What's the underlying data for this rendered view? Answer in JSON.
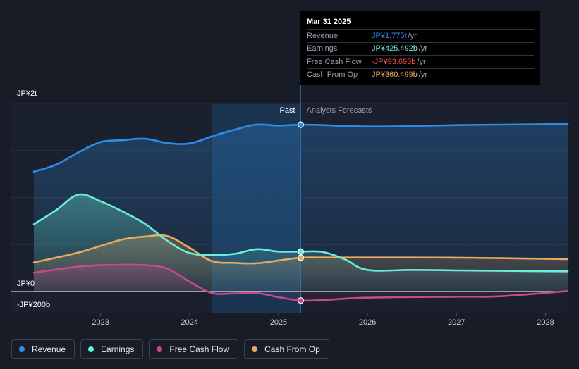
{
  "colors": {
    "revenue": "#2e8ee5",
    "earnings": "#6cedd7",
    "free_cash_flow": "#c64b8c",
    "cash_from_op": "#e8aa61",
    "background": "#181c27",
    "past_highlight": "#1c3a58"
  },
  "tooltip": {
    "date": "Mar 31 2025",
    "rows": [
      {
        "label": "Revenue",
        "value": "JP¥1.775t",
        "unit": "/yr",
        "color": "#2e8ee5"
      },
      {
        "label": "Earnings",
        "value": "JP¥425.492b",
        "unit": "/yr",
        "color": "#6cedd7"
      },
      {
        "label": "Free Cash Flow",
        "value": "-JP¥93.693b",
        "unit": "/yr",
        "color": "#ff4d4d"
      },
      {
        "label": "Cash From Op",
        "value": "JP¥360.499b",
        "unit": "/yr",
        "color": "#e8aa61"
      }
    ]
  },
  "legend": [
    {
      "label": "Revenue",
      "color": "#2e8ee5"
    },
    {
      "label": "Earnings",
      "color": "#6cedd7"
    },
    {
      "label": "Free Cash Flow",
      "color": "#c64b8c"
    },
    {
      "label": "Cash From Op",
      "color": "#e8aa61"
    }
  ],
  "chart_data": {
    "type": "line",
    "title": "",
    "xlabel": "",
    "ylabel": "",
    "units": "JP¥ billions",
    "ylim": [
      -200,
      2000
    ],
    "y_tick_labels": [
      {
        "value": 2000,
        "label": "JP¥2t"
      },
      {
        "value": 0,
        "label": "JP¥0"
      },
      {
        "value": -200,
        "label": "-JP¥200b"
      }
    ],
    "xlim": [
      2022.25,
      2028.25
    ],
    "x_ticks": [
      {
        "value": 2023,
        "label": "2023"
      },
      {
        "value": 2024,
        "label": "2024"
      },
      {
        "value": 2025,
        "label": "2025"
      },
      {
        "value": 2026,
        "label": "2026"
      },
      {
        "value": 2027,
        "label": "2027"
      },
      {
        "value": 2028,
        "label": "2028"
      }
    ],
    "past_start": 2024.25,
    "divider": 2025.25,
    "past_label": "Past",
    "forecast_label": "Analysts Forecasts",
    "series": [
      {
        "name": "Revenue",
        "key": "revenue",
        "points": [
          [
            2022.25,
            1275
          ],
          [
            2022.5,
            1350
          ],
          [
            2022.75,
            1480
          ],
          [
            2023.0,
            1590
          ],
          [
            2023.25,
            1610
          ],
          [
            2023.5,
            1625
          ],
          [
            2023.75,
            1580
          ],
          [
            2024.0,
            1575
          ],
          [
            2024.25,
            1650
          ],
          [
            2024.5,
            1720
          ],
          [
            2024.75,
            1775
          ],
          [
            2025.0,
            1765
          ],
          [
            2025.25,
            1775
          ],
          [
            2025.5,
            1770
          ],
          [
            2026.0,
            1755
          ],
          [
            2026.5,
            1760
          ],
          [
            2027.0,
            1770
          ],
          [
            2027.5,
            1775
          ],
          [
            2028.25,
            1782
          ]
        ]
      },
      {
        "name": "Earnings",
        "key": "earnings",
        "points": [
          [
            2022.25,
            715
          ],
          [
            2022.5,
            865
          ],
          [
            2022.75,
            1030
          ],
          [
            2023.0,
            960
          ],
          [
            2023.25,
            850
          ],
          [
            2023.5,
            720
          ],
          [
            2023.75,
            540
          ],
          [
            2024.0,
            410
          ],
          [
            2024.25,
            390
          ],
          [
            2024.5,
            400
          ],
          [
            2024.75,
            450
          ],
          [
            2025.0,
            425
          ],
          [
            2025.25,
            425
          ],
          [
            2025.5,
            420
          ],
          [
            2025.75,
            340
          ],
          [
            2026.0,
            230
          ],
          [
            2026.5,
            230
          ],
          [
            2027.0,
            225
          ],
          [
            2027.5,
            220
          ],
          [
            2028.25,
            215
          ]
        ]
      },
      {
        "name": "Free Cash Flow",
        "key": "free_cash_flow",
        "points": [
          [
            2022.25,
            200
          ],
          [
            2022.5,
            235
          ],
          [
            2022.75,
            265
          ],
          [
            2023.0,
            280
          ],
          [
            2023.25,
            285
          ],
          [
            2023.5,
            280
          ],
          [
            2023.75,
            245
          ],
          [
            2024.0,
            105
          ],
          [
            2024.25,
            -15
          ],
          [
            2024.5,
            -20
          ],
          [
            2024.75,
            -15
          ],
          [
            2025.0,
            -60
          ],
          [
            2025.25,
            -95
          ],
          [
            2025.5,
            -90
          ],
          [
            2026.0,
            -65
          ],
          [
            2027.0,
            -55
          ],
          [
            2027.5,
            -50
          ],
          [
            2028.25,
            5
          ]
        ]
      },
      {
        "name": "Cash From Op",
        "key": "cash_from_op",
        "points": [
          [
            2022.25,
            310
          ],
          [
            2022.5,
            360
          ],
          [
            2022.75,
            415
          ],
          [
            2023.0,
            485
          ],
          [
            2023.25,
            555
          ],
          [
            2023.5,
            585
          ],
          [
            2023.75,
            590
          ],
          [
            2024.0,
            465
          ],
          [
            2024.25,
            325
          ],
          [
            2024.5,
            305
          ],
          [
            2024.75,
            300
          ],
          [
            2025.0,
            330
          ],
          [
            2025.25,
            360
          ],
          [
            2025.5,
            362
          ],
          [
            2026.0,
            362
          ],
          [
            2026.5,
            362
          ],
          [
            2027.0,
            360
          ],
          [
            2027.5,
            355
          ],
          [
            2028.25,
            345
          ]
        ]
      }
    ]
  }
}
